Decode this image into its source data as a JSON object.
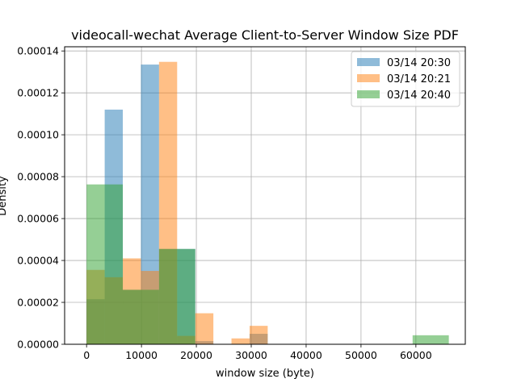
{
  "chart_data": {
    "type": "histogram",
    "title": "videocall-wechat Average Client-to-Server Window Size PDF",
    "xlabel": "window size (byte)",
    "ylabel": "Density",
    "xlim": [
      -4000,
      69000
    ],
    "ylim": [
      0,
      0.000142
    ],
    "xticks": [
      0,
      10000,
      20000,
      30000,
      40000,
      50000,
      60000
    ],
    "xtick_labels": [
      "0",
      "10000",
      "20000",
      "30000",
      "40000",
      "50000",
      "60000"
    ],
    "yticks": [
      0,
      2e-05,
      4e-05,
      6e-05,
      8e-05,
      0.0001,
      0.00012,
      0.00014
    ],
    "ytick_labels": [
      "0.00000",
      "0.00002",
      "0.00004",
      "0.00006",
      "0.00008",
      "0.00010",
      "0.00012",
      "0.00014"
    ],
    "grid": true,
    "legend_position": "top-right",
    "series": [
      {
        "name": "03/14 20:30",
        "color": "#1f77b4",
        "bins": [
          [
            0,
            3300,
            2.15e-05
          ],
          [
            3300,
            6600,
            0.000112
          ],
          [
            6600,
            9900,
            2.6e-05
          ],
          [
            9900,
            13200,
            0.0001335
          ],
          [
            13200,
            16500,
            4.55e-05
          ],
          [
            16500,
            19800,
            4.55e-05
          ],
          [
            19800,
            23100,
            1.5e-06
          ],
          [
            29700,
            33000,
            5e-06
          ]
        ]
      },
      {
        "name": "03/14 20:21",
        "color": "#ff7f0e",
        "bins": [
          [
            0,
            3300,
            3.55e-05
          ],
          [
            3300,
            6600,
            3.2e-05
          ],
          [
            6600,
            9900,
            4.1e-05
          ],
          [
            9900,
            13200,
            3.5e-05
          ],
          [
            13200,
            16500,
            0.0001348
          ],
          [
            16500,
            19800,
            4e-06
          ],
          [
            19800,
            23100,
            1.48e-05
          ],
          [
            26400,
            29700,
            2.8e-06
          ],
          [
            29700,
            33000,
            8.8e-06
          ]
        ]
      },
      {
        "name": "03/14 20:40",
        "color": "#2ca02c",
        "bins": [
          [
            0,
            6600,
            7.63e-05
          ],
          [
            6600,
            13200,
            2.6e-05
          ],
          [
            13200,
            19800,
            4.55e-05
          ],
          [
            59400,
            66000,
            4.3e-06
          ]
        ]
      }
    ]
  }
}
